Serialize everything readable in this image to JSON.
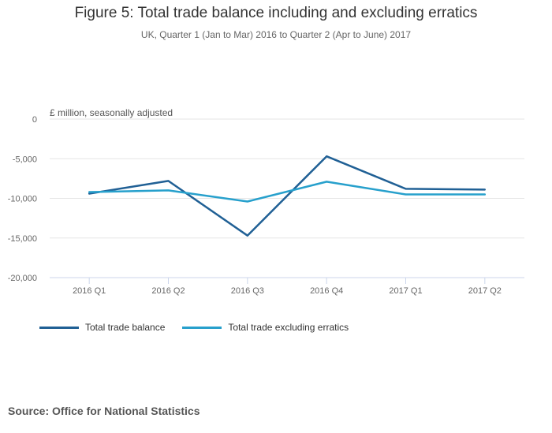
{
  "title": "Figure 5: Total trade balance including and excluding erratics",
  "subtitle": "UK, Quarter 1 (Jan to Mar) 2016 to Quarter 2 (Apr to June) 2017",
  "source": "Source: Office for National Statistics",
  "colors": {
    "balance": "#206095",
    "excluding": "#27a0cc",
    "grid": "#e6e6e6",
    "axis": "#ccd6eb",
    "tick_text": "#666666"
  },
  "chart_data": {
    "type": "line",
    "ylabel": "£ million, seasonally adjusted",
    "categories": [
      "2016 Q1",
      "2016 Q2",
      "2016 Q3",
      "2016 Q4",
      "2017 Q1",
      "2017 Q2"
    ],
    "ylim": [
      -20000,
      0
    ],
    "yticks": [
      0,
      -5000,
      -10000,
      -15000,
      -20000
    ],
    "ytick_labels": [
      "0",
      "-5,000",
      "-10,000",
      "-15,000",
      "-20,000"
    ],
    "grid": true,
    "legend_position": "bottom-left",
    "series": [
      {
        "name": "Total trade balance",
        "color_key": "balance",
        "values": [
          -9400,
          -7800,
          -14700,
          -4700,
          -8800,
          -8900
        ]
      },
      {
        "name": "Total trade excluding erratics",
        "color_key": "excluding",
        "values": [
          -9200,
          -9000,
          -10400,
          -7900,
          -9500,
          -9500
        ]
      }
    ]
  }
}
